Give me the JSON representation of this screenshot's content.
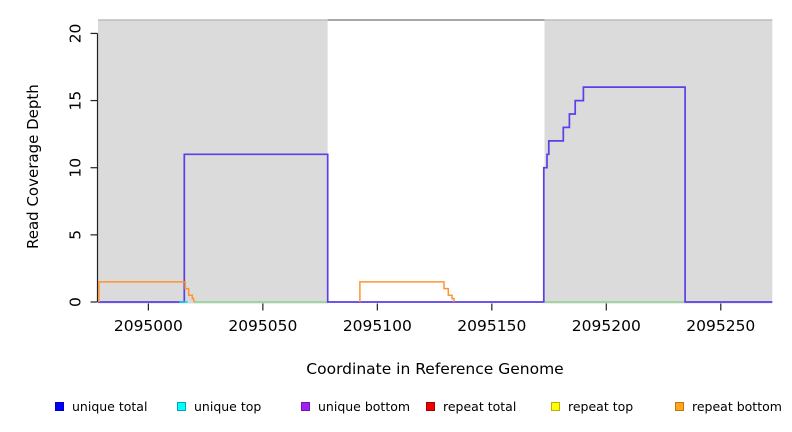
{
  "chart_data": {
    "type": "line",
    "subtype": "step-coverage",
    "title": "",
    "xlabel": "Coordinate in Reference Genome",
    "ylabel": "Read Coverage Depth",
    "xlim": [
      2094978,
      2095272.5
    ],
    "ylim": [
      0,
      21
    ],
    "x_ticks": [
      2095000,
      2095050,
      2095100,
      2095150,
      2095200,
      2095250
    ],
    "y_ticks": [
      0,
      5,
      10,
      15,
      20
    ],
    "grid": false,
    "legend_position": "bottom",
    "shaded_regions": [
      {
        "x0": 2094978.0,
        "x1": 2095078.3,
        "color": "#DBDBDB"
      },
      {
        "x0": 2095173.0,
        "x1": 2095272.5,
        "color": "#DBDBDB"
      }
    ],
    "clip_line": {
      "y": 21,
      "segments": [
        {
          "x0": 2094978.0,
          "x1": 2095078.3,
          "color": "#BDBDBD"
        },
        {
          "x0": 2095078.3,
          "x1": 2095173.0,
          "color": "#8C8C8C"
        },
        {
          "x0": 2095173.0,
          "x1": 2095272.5,
          "color": "#BDBDBD"
        }
      ]
    },
    "series": [
      {
        "name": "repeat-top-zero-left",
        "color": "#8CD28C",
        "width": 1.5,
        "points": [
          [
            2095019.8,
            0
          ],
          [
            2095078.3,
            0
          ]
        ]
      },
      {
        "name": "repeat-top-zero-right",
        "color": "#8CD28C",
        "width": 1.5,
        "points": [
          [
            2095173.2,
            0
          ],
          [
            2095234.4,
            0
          ]
        ]
      },
      {
        "name": "unique-total-bottom",
        "color": "#5B3FE8",
        "width": 1.7,
        "points": [
          [
            2094978,
            0
          ],
          [
            2095015.7,
            0
          ],
          [
            2095015.7,
            11
          ],
          [
            2095078.3,
            11
          ],
          [
            2095078.3,
            0
          ],
          [
            2095172.7,
            0
          ],
          [
            2095172.7,
            10
          ],
          [
            2095174.1,
            10
          ],
          [
            2095174.1,
            11
          ],
          [
            2095174.9,
            11
          ],
          [
            2095174.9,
            12
          ],
          [
            2095181.2,
            12
          ],
          [
            2095181.2,
            13
          ],
          [
            2095183.9,
            13
          ],
          [
            2095183.9,
            14
          ],
          [
            2095186.4,
            14
          ],
          [
            2095186.4,
            15
          ],
          [
            2095190,
            15
          ],
          [
            2095190,
            16
          ],
          [
            2095234.4,
            16
          ],
          [
            2095234.4,
            0
          ],
          [
            2095272.5,
            0
          ]
        ]
      },
      {
        "name": "unique-top-zero",
        "color": "#00DDE6",
        "width": 1.5,
        "points": [
          [
            2095013.5,
            0
          ],
          [
            2095017.2,
            0
          ]
        ]
      },
      {
        "name": "repeat-bottom-left",
        "color": "#FF9430",
        "width": 1.5,
        "points": [
          [
            2094978.4,
            0
          ],
          [
            2094978.4,
            1.5
          ],
          [
            2095016.1,
            1.5
          ],
          [
            2095016.1,
            1
          ],
          [
            2095017.6,
            1
          ],
          [
            2095017.6,
            0.5
          ],
          [
            2095019.2,
            0.5
          ],
          [
            2095019.2,
            0.25
          ],
          [
            2095019.8,
            0.25
          ],
          [
            2095019.8,
            0
          ]
        ]
      },
      {
        "name": "repeat-bottom-middle",
        "color": "#FF9430",
        "width": 1.5,
        "points": [
          [
            2095092.4,
            0
          ],
          [
            2095092.4,
            1.5
          ],
          [
            2095129.1,
            1.5
          ],
          [
            2095129.1,
            1
          ],
          [
            2095131,
            1
          ],
          [
            2095131,
            0.5
          ],
          [
            2095132.6,
            0.5
          ],
          [
            2095132.6,
            0.25
          ],
          [
            2095133.5,
            0.25
          ],
          [
            2095133.5,
            0
          ]
        ]
      }
    ],
    "legend": [
      {
        "label": "unique total",
        "fill": "#0000FF",
        "border": "#0000C0"
      },
      {
        "label": "unique top",
        "fill": "#00FFFF",
        "border": "#00A6B8"
      },
      {
        "label": "unique bottom",
        "fill": "#A020F0",
        "border": "#7A10B8"
      },
      {
        "label": "repeat total",
        "fill": "#EE0000",
        "border": "#A80000"
      },
      {
        "label": "repeat top",
        "fill": "#FFFF00",
        "border": "#C0B000"
      },
      {
        "label": "repeat bottom",
        "fill": "#FFA520",
        "border": "#C07800"
      }
    ]
  }
}
